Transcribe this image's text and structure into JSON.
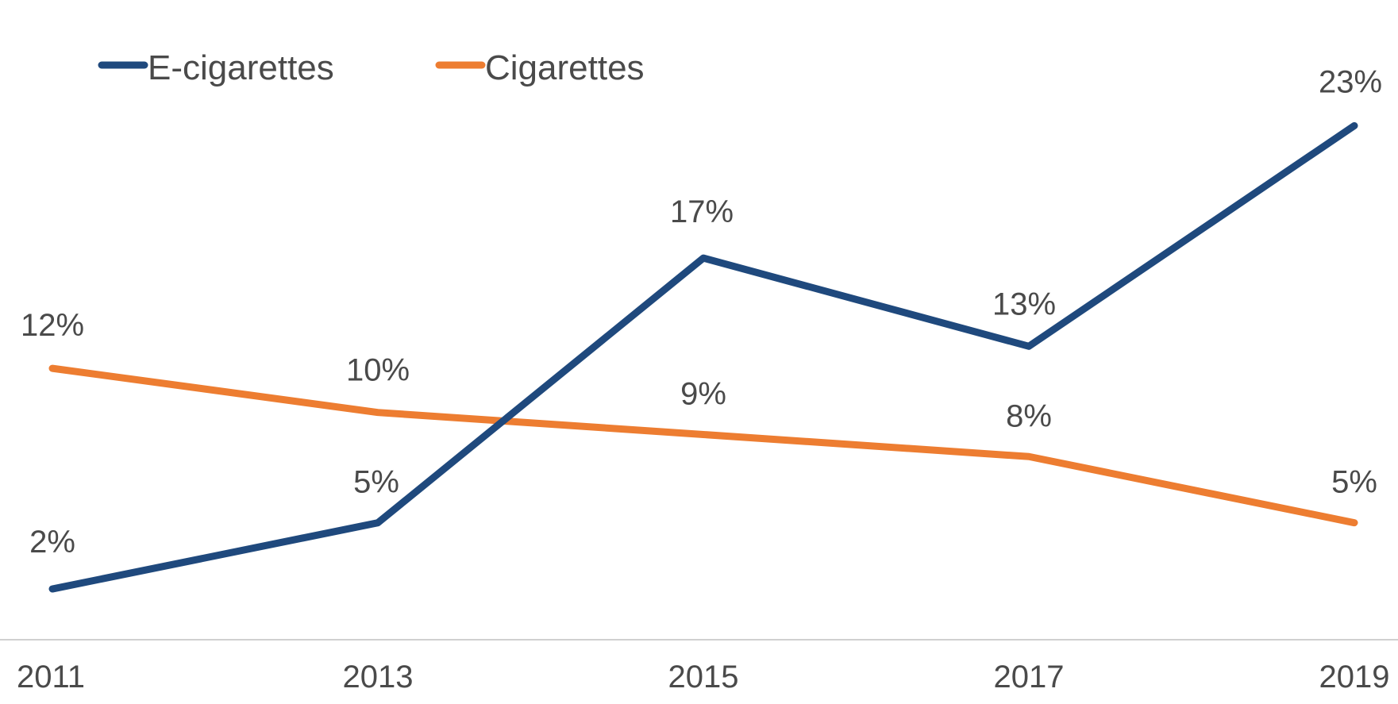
{
  "chart_data": {
    "type": "line",
    "title": "",
    "xlabel": "",
    "ylabel": "",
    "categories": [
      "2011",
      "2013",
      "2015",
      "2017",
      "2019"
    ],
    "ylim": [
      -3,
      26
    ],
    "grid": false,
    "legend_position": "top-left",
    "series": [
      {
        "name": "E-cigarettes",
        "color": "#1f497d",
        "values": [
          2,
          5,
          17,
          13,
          23
        ],
        "labels": [
          "2%",
          "5%",
          "17%",
          "13%",
          "23%"
        ]
      },
      {
        "name": "Cigarettes",
        "color": "#ed7d31",
        "values": [
          12,
          10,
          9,
          8,
          5
        ],
        "labels": [
          "12%",
          "10%",
          "9%",
          "8%",
          "5%"
        ]
      }
    ]
  }
}
